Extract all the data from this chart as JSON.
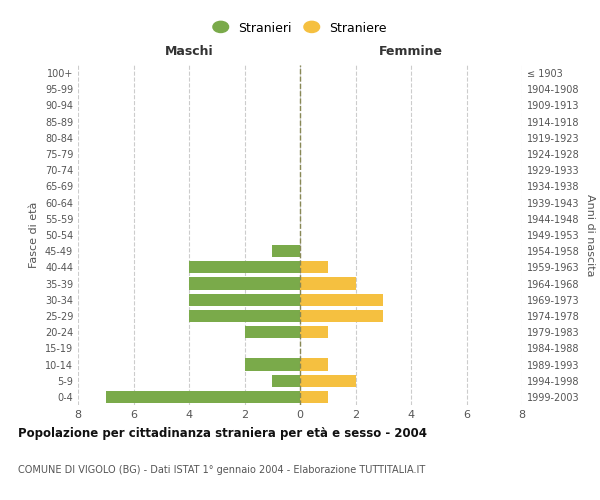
{
  "age_groups": [
    "0-4",
    "5-9",
    "10-14",
    "15-19",
    "20-24",
    "25-29",
    "30-34",
    "35-39",
    "40-44",
    "45-49",
    "50-54",
    "55-59",
    "60-64",
    "65-69",
    "70-74",
    "75-79",
    "80-84",
    "85-89",
    "90-94",
    "95-99",
    "100+"
  ],
  "birth_years": [
    "1999-2003",
    "1994-1998",
    "1989-1993",
    "1984-1988",
    "1979-1983",
    "1974-1978",
    "1969-1973",
    "1964-1968",
    "1959-1963",
    "1954-1958",
    "1949-1953",
    "1944-1948",
    "1939-1943",
    "1934-1938",
    "1929-1933",
    "1924-1928",
    "1919-1923",
    "1914-1918",
    "1909-1913",
    "1904-1908",
    "≤ 1903"
  ],
  "males": [
    7,
    1,
    2,
    0,
    2,
    4,
    4,
    4,
    4,
    1,
    0,
    0,
    0,
    0,
    0,
    0,
    0,
    0,
    0,
    0,
    0
  ],
  "females": [
    1,
    2,
    1,
    0,
    1,
    3,
    3,
    2,
    1,
    0,
    0,
    0,
    0,
    0,
    0,
    0,
    0,
    0,
    0,
    0,
    0
  ],
  "male_color": "#7aaa4a",
  "female_color": "#f5c040",
  "male_label": "Stranieri",
  "female_label": "Straniere",
  "title": "Popolazione per cittadinanza straniera per età e sesso - 2004",
  "subtitle": "COMUNE DI VIGOLO (BG) - Dati ISTAT 1° gennaio 2004 - Elaborazione TUTTITALIA.IT",
  "xlabel_left": "Maschi",
  "xlabel_right": "Femmine",
  "ylabel_left": "Fasce di età",
  "ylabel_right": "Anni di nascita",
  "xlim": 8,
  "background_color": "#ffffff",
  "grid_color": "#cccccc",
  "grid_style": "--"
}
